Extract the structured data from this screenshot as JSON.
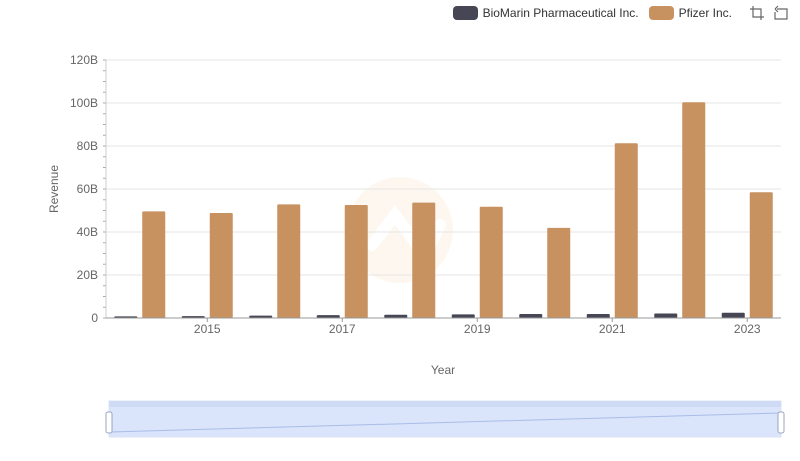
{
  "legend": {
    "items": [
      {
        "label": "BioMarin Pharmaceutical Inc.",
        "color": "#464655"
      },
      {
        "label": "Pfizer Inc.",
        "color": "#c89160"
      }
    ],
    "tools": [
      "zoom-select-icon",
      "zoom-reset-icon"
    ]
  },
  "chart_data": {
    "type": "bar",
    "xlabel": "Year",
    "ylabel": "Revenue",
    "ylim": [
      0,
      120000000000
    ],
    "y_ticks": [
      "0",
      "20B",
      "40B",
      "60B",
      "80B",
      "100B",
      "120B"
    ],
    "x_tick_labels": [
      "2015",
      "2017",
      "2019",
      "2021",
      "2023"
    ],
    "categories": [
      "2014",
      "2015",
      "2016",
      "2017",
      "2018",
      "2019",
      "2020",
      "2021",
      "2022",
      "2023"
    ],
    "series": [
      {
        "name": "BioMarin Pharmaceutical Inc.",
        "color": "#464655",
        "values": [
          751000000,
          890000000,
          1117000000,
          1313000000,
          1491000000,
          1704000000,
          1860000000,
          1846000000,
          2096000000,
          2419000000
        ]
      },
      {
        "name": "Pfizer Inc.",
        "color": "#c89160",
        "values": [
          49605000000,
          48851000000,
          52824000000,
          52546000000,
          53647000000,
          51750000000,
          41908000000,
          81288000000,
          100330000000,
          58496000000
        ]
      }
    ],
    "grid": true,
    "legend_position": "top-right",
    "data_zoom": {
      "range_start_percent": 0,
      "range_end_percent": 100
    }
  }
}
